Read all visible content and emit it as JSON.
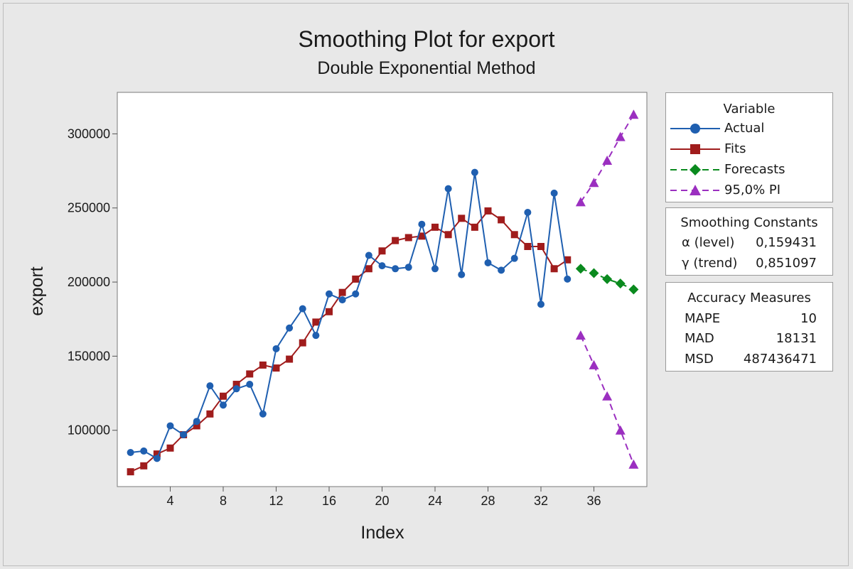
{
  "chart_data": {
    "type": "line",
    "title": "Smoothing Plot for export",
    "subtitle": "Double Exponential Method",
    "xlabel": "Index",
    "ylabel": "export",
    "xlim": [
      0,
      40
    ],
    "ylim": [
      62000,
      328000
    ],
    "x_ticks": [
      4,
      8,
      12,
      16,
      20,
      24,
      28,
      32,
      36
    ],
    "y_ticks": [
      100000,
      150000,
      200000,
      250000,
      300000
    ],
    "y_tick_labels": [
      "100000",
      "150000",
      "200000",
      "250000",
      "300000"
    ],
    "grid": false,
    "legend_position": "right",
    "series": [
      {
        "name": "Actual",
        "color": "#1f5fb0",
        "marker": "circle",
        "dash": "solid",
        "x": [
          1,
          2,
          3,
          4,
          5,
          6,
          7,
          8,
          9,
          10,
          11,
          12,
          13,
          14,
          15,
          16,
          17,
          18,
          19,
          20,
          21,
          22,
          23,
          24,
          25,
          26,
          27,
          28,
          29,
          30,
          31,
          32,
          33,
          34
        ],
        "values": [
          85000,
          86000,
          81000,
          103000,
          97000,
          106000,
          130000,
          117000,
          128000,
          131000,
          111000,
          155000,
          169000,
          182000,
          164000,
          192000,
          188000,
          192000,
          218000,
          211000,
          209000,
          210000,
          239000,
          209000,
          263000,
          205000,
          274000,
          213000,
          208000,
          216000,
          247000,
          185000,
          260000,
          202000
        ]
      },
      {
        "name": "Fits",
        "color": "#a01c1c",
        "marker": "square",
        "dash": "solid",
        "x": [
          1,
          2,
          3,
          4,
          5,
          6,
          7,
          8,
          9,
          10,
          11,
          12,
          13,
          14,
          15,
          16,
          17,
          18,
          19,
          20,
          21,
          22,
          23,
          24,
          25,
          26,
          27,
          28,
          29,
          30,
          31,
          32,
          33,
          34
        ],
        "values": [
          72000,
          76000,
          84000,
          88000,
          97000,
          103000,
          111000,
          123000,
          131000,
          138000,
          144000,
          142000,
          148000,
          159000,
          173000,
          180000,
          193000,
          202000,
          209000,
          221000,
          228000,
          230000,
          231000,
          237000,
          232000,
          243000,
          237000,
          248000,
          242000,
          232000,
          224000,
          224000,
          209000,
          215000
        ]
      },
      {
        "name": "Forecasts",
        "color": "#0a8a1e",
        "marker": "diamond",
        "dash": "dashed",
        "x": [
          35,
          36,
          37,
          38,
          39
        ],
        "values": [
          209000,
          206000,
          202000,
          199000,
          195000
        ]
      },
      {
        "name": "95,0% PI",
        "color": "#9b2fc0",
        "marker": "triangle",
        "dash": "dashed",
        "x": [
          35,
          36,
          37,
          38,
          39
        ],
        "values": [
          254000,
          267000,
          282000,
          298000,
          313000
        ]
      },
      {
        "color": "#9b2fc0",
        "marker": "triangle",
        "dash": "dashed",
        "x": [
          35,
          36,
          37,
          38,
          39
        ],
        "values": [
          164000,
          144000,
          123000,
          100000,
          77000
        ]
      }
    ]
  },
  "legend": {
    "header": "Variable",
    "items": [
      {
        "label": "Actual",
        "color": "#1f5fb0",
        "marker": "circle",
        "dash": "solid"
      },
      {
        "label": "Fits",
        "color": "#a01c1c",
        "marker": "square",
        "dash": "solid"
      },
      {
        "label": "Forecasts",
        "color": "#0a8a1e",
        "marker": "diamond",
        "dash": "dashed"
      },
      {
        "label": "95,0% PI",
        "color": "#9b2fc0",
        "marker": "triangle",
        "dash": "dashed"
      }
    ]
  },
  "smoothing": {
    "header": "Smoothing Constants",
    "alpha_label": "α (level)",
    "alpha_value": "0,159431",
    "gamma_label": "γ (trend)",
    "gamma_value": "0,851097"
  },
  "accuracy": {
    "header": "Accuracy Measures",
    "mape_label": "MAPE",
    "mape_value": "10",
    "mad_label": "MAD",
    "mad_value": "18131",
    "msd_label": "MSD",
    "msd_value": "487436471"
  }
}
